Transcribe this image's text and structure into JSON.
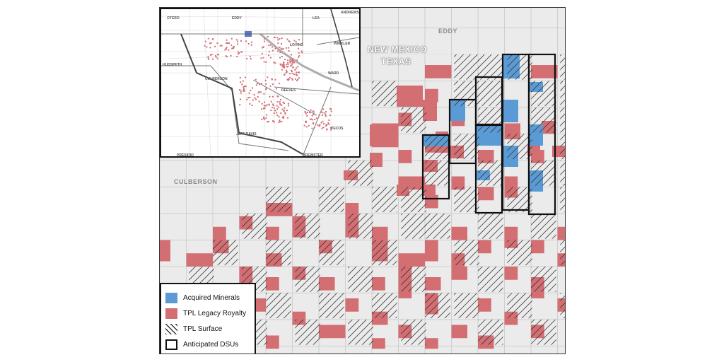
{
  "labels": {
    "county_culberson": "CULBERSON",
    "county_eddy": "EDDY",
    "state_new_mexico": "NEW MEXICO",
    "state_texas": "TEXAS"
  },
  "inset": {
    "counties": [
      "OTERO",
      "EDDY",
      "LEA",
      "ANDREWS",
      "WINKLER",
      "LOVING",
      "HUDSPETH",
      "CULBERSON",
      "WARD",
      "REEVES",
      "JEFF DAVIS",
      "PECOS",
      "PRESIDIO",
      "BREWSTER"
    ]
  },
  "legend": [
    {
      "label": "Acquired Minerals",
      "kind": "fill",
      "color": "#5b9bd5"
    },
    {
      "label": "TPL Legacy Royalty",
      "kind": "fill",
      "color": "#d36e73"
    },
    {
      "label": "TPL Surface",
      "kind": "hatch",
      "color": "#333333"
    },
    {
      "label": "Anticipated DSUs",
      "kind": "outline",
      "color": "#111111"
    }
  ],
  "colors": {
    "background": "#ebebeb",
    "grid_line": "#cfcfcf",
    "royalty": "#d36e73",
    "acquired": "#5b9bd5",
    "surface_hatch": "#333333",
    "dsu_outline": "#111111"
  }
}
